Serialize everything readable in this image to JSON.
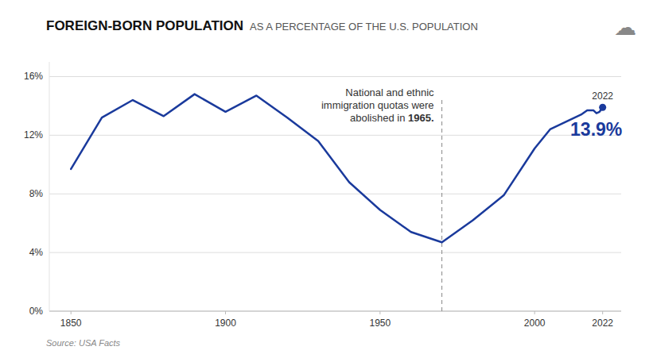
{
  "chart_data": {
    "type": "line",
    "title": "FOREIGN-BORN POPULATION",
    "subtitle": "AS A PERCENTAGE OF THE U.S. POPULATION",
    "source": "Source: USA Facts",
    "annotation": "National and ethnic\nimmigration quotas were\nabolished in ",
    "annotation_bold": "1965.",
    "icon": "☁",
    "color": "#1a3a9c",
    "x": [
      1850,
      1860,
      1870,
      1880,
      1890,
      1900,
      1910,
      1920,
      1930,
      1940,
      1950,
      1960,
      1970,
      1980,
      1990,
      2000,
      2005,
      2010,
      2015,
      2017,
      2018,
      2019,
      2020,
      2021,
      2022
    ],
    "values": [
      9.7,
      13.2,
      14.4,
      13.3,
      14.8,
      13.6,
      14.7,
      13.2,
      11.6,
      8.8,
      6.9,
      5.4,
      4.7,
      6.2,
      7.9,
      11.1,
      12.4,
      12.9,
      13.4,
      13.7,
      13.7,
      13.7,
      13.5,
      13.6,
      13.9
    ],
    "reference_x": 1970,
    "highlight": {
      "x": 2022,
      "value": 13.9,
      "labels": [
        "2022",
        "13.9%"
      ]
    },
    "xlim": [
      1843,
      2028
    ],
    "xticks": [
      1850,
      1900,
      1950,
      2000,
      2022
    ],
    "ylim": [
      0,
      17
    ],
    "yticks": [
      {
        "value": 0,
        "label": "0%"
      },
      {
        "value": 4,
        "label": "4%"
      },
      {
        "value": 8,
        "label": "8%"
      },
      {
        "value": 12,
        "label": "12%"
      },
      {
        "value": 16,
        "label": "16%"
      }
    ],
    "grid": true
  }
}
